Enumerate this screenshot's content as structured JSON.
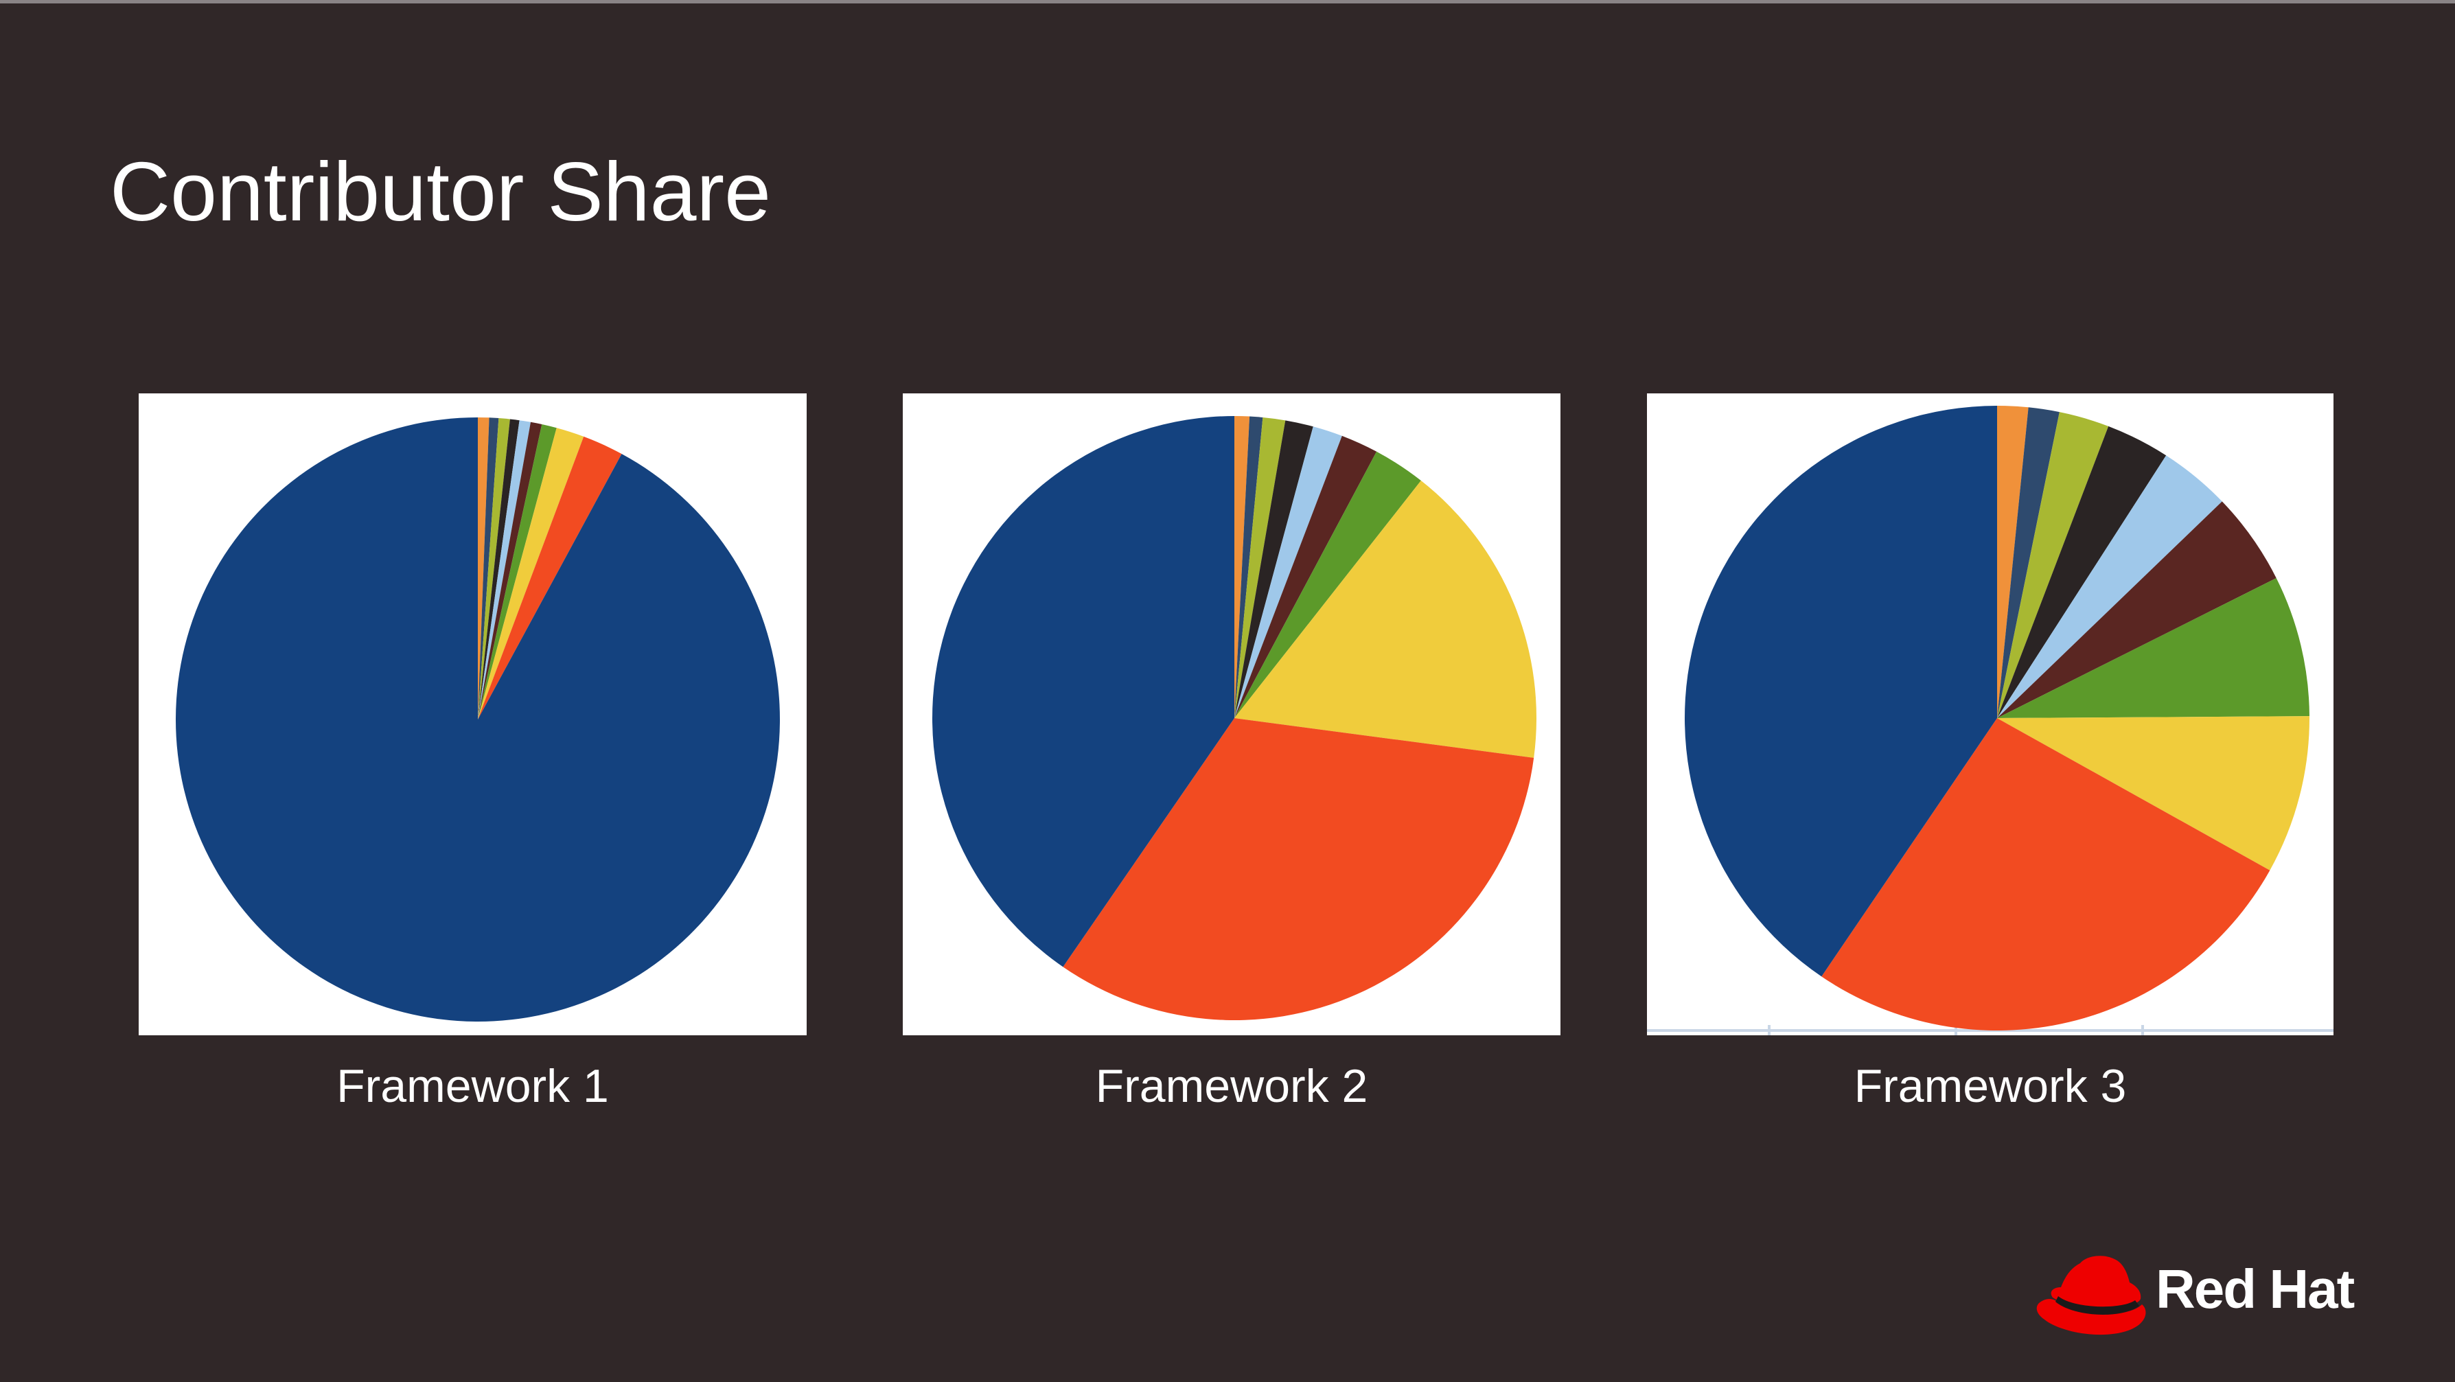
{
  "slide": {
    "title": "Contributor Share",
    "brand": "Red Hat",
    "brand_color": "#ee0000"
  },
  "colors": [
    "#f0913a",
    "#2e4a6e",
    "#a8b832",
    "#2a2424",
    "#9fc8ea",
    "#5a2622",
    "#5c9a2a",
    "#f0cc3c",
    "#f24b21",
    "#14427f"
  ],
  "chart_data": [
    {
      "type": "pie",
      "label": "Framework 1",
      "values": [
        0.6,
        0.5,
        0.6,
        0.5,
        0.6,
        0.6,
        0.8,
        1.5,
        2.2,
        92.1
      ]
    },
    {
      "type": "pie",
      "label": "Framework 2",
      "values": [
        0.8,
        0.7,
        1.2,
        1.5,
        1.6,
        2.0,
        2.8,
        16.5,
        32.5,
        40.4
      ]
    },
    {
      "type": "pie",
      "label": "Framework 3",
      "values": [
        1.6,
        1.6,
        2.6,
        3.3,
        3.7,
        4.8,
        7.3,
        8.2,
        26.4,
        40.5
      ]
    }
  ]
}
